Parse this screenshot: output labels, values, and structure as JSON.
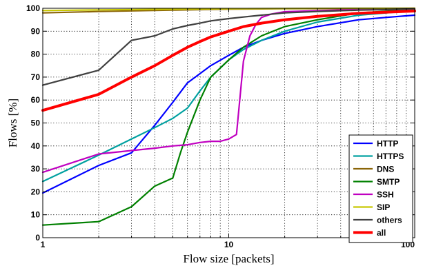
{
  "chart_data": {
    "type": "line",
    "xlabel": "Flow size [packets]",
    "ylabel": "Flows [%]",
    "xscale": "log",
    "xlim": [
      1,
      100
    ],
    "ylim": [
      0,
      100
    ],
    "xticks": [
      {
        "value": 1,
        "label": "1"
      },
      {
        "value": 10,
        "label": "10"
      },
      {
        "value": 100,
        "label": "100"
      }
    ],
    "yticks": [
      0,
      10,
      20,
      30,
      40,
      50,
      60,
      70,
      80,
      90,
      100
    ],
    "grid": true,
    "legend_position": "bottom-right",
    "series": [
      {
        "name": "HTTP",
        "color": "#0000ff",
        "x": [
          1,
          2,
          3,
          4,
          5,
          6,
          7,
          8,
          10,
          12,
          15,
          20,
          30,
          50,
          70,
          100
        ],
        "y": [
          19.5,
          31.5,
          37,
          49,
          59,
          67.5,
          71.5,
          75,
          79.5,
          83,
          86,
          89,
          92,
          95,
          96,
          97
        ]
      },
      {
        "name": "HTTPS",
        "color": "#00a0a0",
        "x": [
          1,
          2,
          3,
          4,
          5,
          6,
          7,
          8,
          10,
          12,
          15,
          20,
          30,
          50,
          100
        ],
        "y": [
          24.5,
          36,
          43,
          48,
          52,
          56.5,
          64,
          70,
          77.5,
          82,
          86,
          90,
          94,
          97,
          99
        ]
      },
      {
        "name": "DNS",
        "color": "#8b6508",
        "x": [
          1,
          2,
          5,
          10,
          20,
          50,
          100
        ],
        "y": [
          98,
          98.6,
          99.2,
          99.6,
          99.8,
          99.9,
          100
        ]
      },
      {
        "name": "SMTP",
        "color": "#008000",
        "x": [
          1,
          2,
          3,
          4,
          5,
          5.5,
          6,
          7,
          8,
          10,
          12,
          15,
          20,
          30,
          50,
          100
        ],
        "y": [
          5.5,
          7,
          13.5,
          22.5,
          26,
          37,
          46,
          60,
          70,
          77.5,
          83,
          88,
          92,
          95,
          98,
          99.5
        ]
      },
      {
        "name": "SSH",
        "color": "#c000c0",
        "x": [
          1,
          2,
          3,
          4,
          5,
          6,
          7,
          8,
          9,
          10,
          11,
          12,
          13,
          14,
          15,
          17,
          20,
          50,
          100
        ],
        "y": [
          28.5,
          36.5,
          38,
          39,
          40,
          40.5,
          41.5,
          42,
          42,
          43,
          45,
          77,
          88,
          93,
          96,
          97.5,
          98.5,
          99.5,
          100
        ]
      },
      {
        "name": "SIP",
        "color": "#c8c800",
        "x": [
          1,
          2,
          5,
          10,
          20,
          50,
          100
        ],
        "y": [
          99,
          99.3,
          99.6,
          99.8,
          99.9,
          100,
          100
        ]
      },
      {
        "name": "others",
        "color": "#404040",
        "x": [
          1,
          2,
          3,
          4,
          5,
          6,
          7,
          8,
          10,
          12,
          15,
          20,
          30,
          50,
          100
        ],
        "y": [
          66.5,
          73,
          86,
          88,
          91,
          92.5,
          93.5,
          94.5,
          95.5,
          96.2,
          97,
          98,
          98.6,
          99.2,
          99.6
        ]
      },
      {
        "name": "all",
        "color": "#ff0000",
        "x": [
          1,
          2,
          3,
          4,
          5,
          6,
          7,
          8,
          10,
          12,
          15,
          20,
          30,
          50,
          100
        ],
        "y": [
          55.5,
          62.5,
          70,
          75,
          79.5,
          83,
          85.5,
          87.5,
          90,
          92,
          93.5,
          95,
          96.5,
          97.8,
          98.8
        ]
      }
    ]
  }
}
